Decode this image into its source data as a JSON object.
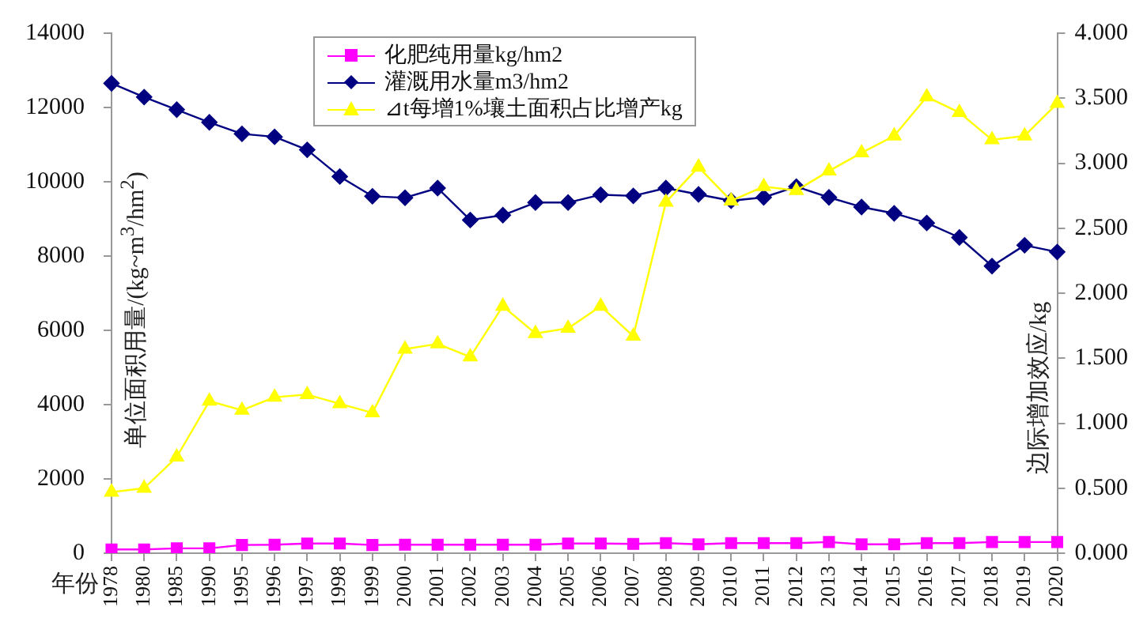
{
  "chart_data": {
    "type": "line",
    "xlabel": "年份",
    "ylabel": "单位面积用量/(kg~m$^{3}$/hm$^{2}$)",
    "y2label": "边际增加效应/kg",
    "categories": [
      "1978",
      "1980",
      "1985",
      "1990",
      "1995",
      "1996",
      "1997",
      "1998",
      "1999",
      "2000",
      "2001",
      "2002",
      "2003",
      "2004",
      "2005",
      "2006",
      "2007",
      "2008",
      "2009",
      "2010",
      "2011",
      "2012",
      "2013",
      "2014",
      "2015",
      "2016",
      "2017",
      "2018",
      "2019",
      "2020"
    ],
    "series": [
      {
        "name": "化肥纯用量kg/hm2",
        "color": "#ff00ff",
        "marker": "square",
        "values": [
          100,
          100,
          130,
          130,
          220,
          230,
          260,
          260,
          220,
          230,
          230,
          230,
          230,
          230,
          260,
          260,
          250,
          270,
          240,
          270,
          270,
          270,
          300,
          240,
          240,
          270,
          270,
          300,
          300,
          300
        ]
      },
      {
        "name": "灌溉用水量m3/hm2",
        "color": "#000080",
        "marker": "diamond",
        "values": [
          12650,
          12280,
          11940,
          11600,
          11290,
          11210,
          10860,
          10140,
          9610,
          9570,
          9830,
          8970,
          9100,
          9440,
          9440,
          9650,
          9620,
          9830,
          9660,
          9490,
          9580,
          9870,
          9580,
          9320,
          9150,
          8890,
          8500,
          7730,
          8290,
          8110
        ]
      },
      {
        "name": "⊿t每增1%壤土面积占比增产kg",
        "color": "#ffff00",
        "marker": "triangle",
        "axis": "y2",
        "values": [
          0.47,
          0.5,
          0.74,
          1.17,
          1.1,
          1.2,
          1.22,
          1.15,
          1.08,
          1.57,
          1.61,
          1.51,
          1.9,
          1.69,
          1.73,
          1.9,
          1.67,
          2.7,
          2.97,
          2.71,
          2.82,
          2.79,
          2.94,
          3.08,
          3.21,
          3.51,
          3.39,
          3.18,
          3.21,
          3.46
        ]
      }
    ],
    "ylim": [
      0,
      14000
    ],
    "yticks": [
      0,
      2000,
      4000,
      6000,
      8000,
      10000,
      12000,
      14000
    ],
    "y2lim": [
      0,
      4
    ],
    "y2ticks": [
      {
        "value": 0,
        "label": "0.000"
      },
      {
        "value": 0.5,
        "label": "0.500"
      },
      {
        "value": 1,
        "label": "1.000"
      },
      {
        "value": 1.5,
        "label": "1.500"
      },
      {
        "value": 2,
        "label": "2.000"
      },
      {
        "value": 2.5,
        "label": "2.500"
      },
      {
        "value": 3,
        "label": "3.000"
      },
      {
        "value": 3.5,
        "label": "3.500"
      },
      {
        "value": 4,
        "label": "4.000"
      }
    ],
    "grid": false,
    "legend": "top",
    "line_style": "solid"
  }
}
